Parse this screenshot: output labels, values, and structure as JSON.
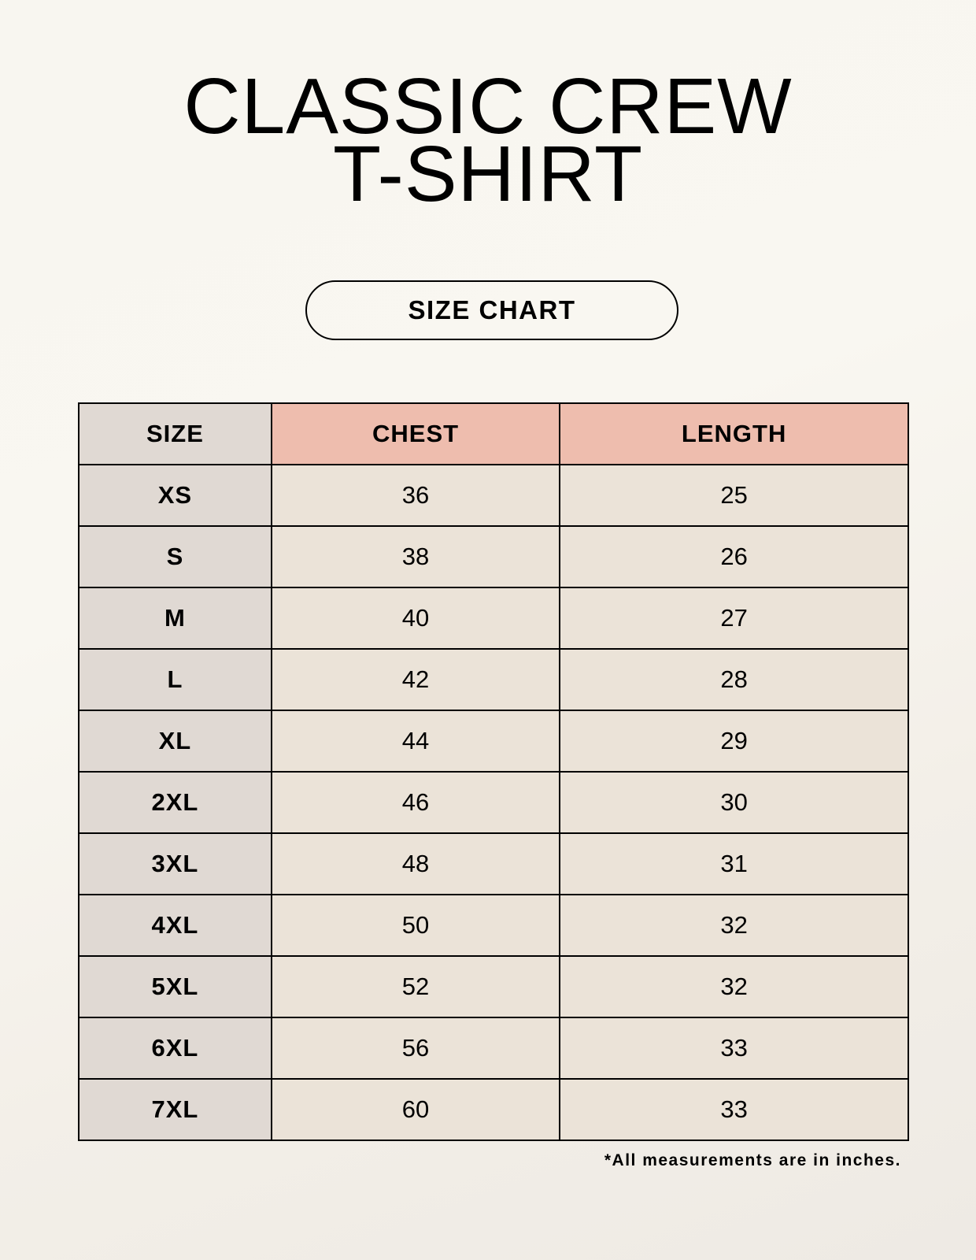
{
  "title": {
    "line1": "CLASSIC CREW",
    "line2": "T-SHIRT"
  },
  "badge": "SIZE CHART",
  "colors": {
    "size_column": "#e0d9d3",
    "header_accent": "#eebdae",
    "value_cells": "#ebe3d8"
  },
  "table": {
    "headers": [
      "SIZE",
      "CHEST",
      "LENGTH"
    ],
    "rows": [
      [
        "XS",
        "36",
        "25"
      ],
      [
        "S",
        "38",
        "26"
      ],
      [
        "M",
        "40",
        "27"
      ],
      [
        "L",
        "42",
        "28"
      ],
      [
        "XL",
        "44",
        "29"
      ],
      [
        "2XL",
        "46",
        "30"
      ],
      [
        "3XL",
        "48",
        "31"
      ],
      [
        "4XL",
        "50",
        "32"
      ],
      [
        "5XL",
        "52",
        "32"
      ],
      [
        "6XL",
        "56",
        "33"
      ],
      [
        "7XL",
        "60",
        "33"
      ]
    ]
  },
  "footnote": "*All measurements are in inches."
}
